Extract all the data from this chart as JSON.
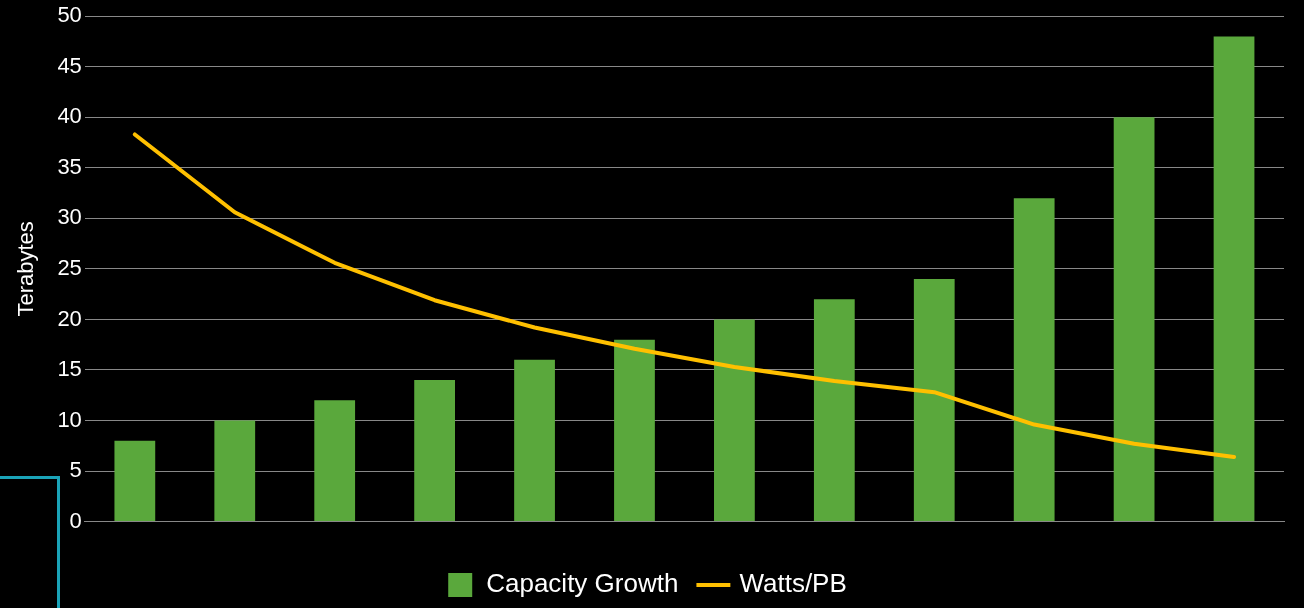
{
  "chart_data": {
    "type": "bar",
    "ylabel": "Terabytes",
    "categories": [
      null,
      null,
      null,
      null,
      null,
      null,
      null,
      null,
      null,
      null,
      null,
      null
    ],
    "series": [
      {
        "name": "Capacity Growth",
        "color": "#5aa83c",
        "values": [
          8,
          10,
          12,
          14,
          16,
          18,
          20,
          22,
          24,
          32,
          40,
          48
        ]
      },
      {
        "name": "Watts/PB",
        "type": "line",
        "color": "#ffc000",
        "values": [
          38.3,
          30.6,
          25.6,
          21.9,
          19.2,
          17.1,
          15.3,
          13.9,
          12.8,
          9.6,
          7.7,
          6.4
        ]
      }
    ],
    "ylim": [
      0,
      50
    ],
    "yticks": [
      0,
      5,
      10,
      15,
      20,
      25,
      30,
      35,
      40,
      45,
      50
    ],
    "grid": "y",
    "legend": "bottom",
    "marker": "none",
    "line_style": "solid"
  }
}
